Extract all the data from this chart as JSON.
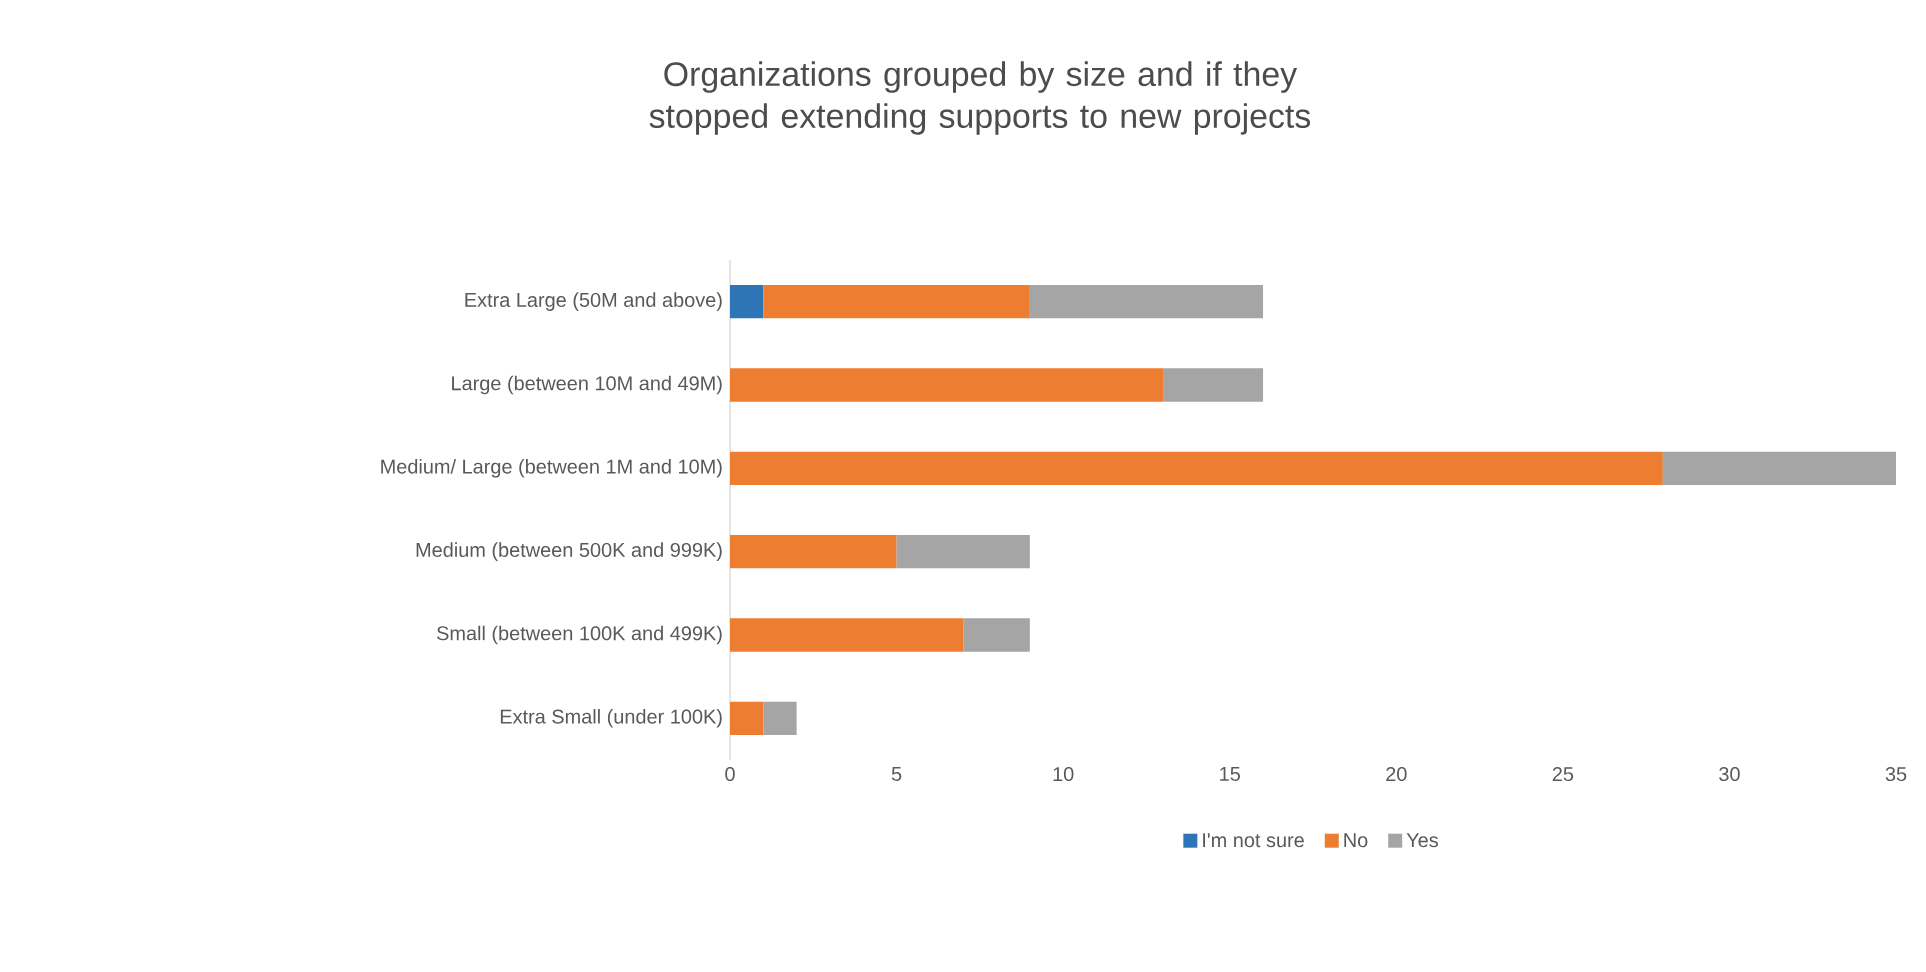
{
  "chart_data": {
    "type": "bar",
    "orientation": "horizontal",
    "stacked": true,
    "title": "Organizations grouped by size and if they stopped extending supports to new projects",
    "categories": [
      "Extra Large (50M and above)",
      "Large (between 10M and 49M)",
      "Medium/ Large (between 1M and 10M)",
      "Medium (between 500K and 999K)",
      "Small (between 100K and 499K)",
      "Extra Small (under 100K)"
    ],
    "series": [
      {
        "name": "I'm not sure",
        "color": "#2e75b6",
        "values": [
          1,
          null,
          null,
          null,
          null,
          null
        ]
      },
      {
        "name": "No",
        "color": "#ed7d31",
        "values": [
          8,
          13,
          28,
          5,
          7,
          1
        ]
      },
      {
        "name": "Yes",
        "color": "#a5a5a5",
        "values": [
          7,
          3,
          7,
          4,
          2,
          1
        ]
      }
    ],
    "xlim": [
      0,
      35
    ],
    "xticks": [
      0,
      5,
      10,
      15,
      20,
      25,
      30,
      35
    ],
    "legend": "bottom"
  }
}
